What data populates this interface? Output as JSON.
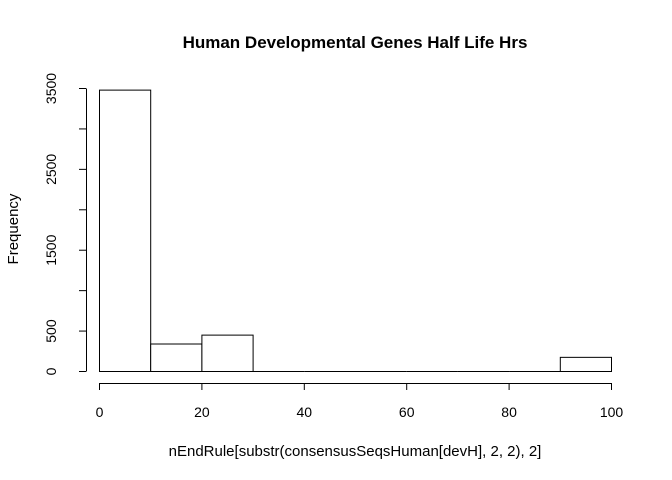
{
  "chart_data": {
    "type": "bar",
    "subtype": "histogram",
    "title": "Human Developmental Genes Half Life Hrs",
    "xlabel": "nEndRule[substr(consensusSeqsHuman[devH], 2, 2), 2]",
    "ylabel": "Frequency",
    "bins": [
      {
        "start": 0,
        "end": 10,
        "value": 3480
      },
      {
        "start": 10,
        "end": 20,
        "value": 340
      },
      {
        "start": 20,
        "end": 30,
        "value": 450
      },
      {
        "start": 30,
        "end": 40,
        "value": 0
      },
      {
        "start": 40,
        "end": 50,
        "value": 0
      },
      {
        "start": 50,
        "end": 60,
        "value": 0
      },
      {
        "start": 60,
        "end": 70,
        "value": 0
      },
      {
        "start": 70,
        "end": 80,
        "value": 0
      },
      {
        "start": 80,
        "end": 90,
        "value": 0
      },
      {
        "start": 90,
        "end": 100,
        "value": 175
      }
    ],
    "xlim": [
      0,
      100
    ],
    "ylim": [
      0,
      3500
    ],
    "x_ticks": [
      0,
      20,
      40,
      60,
      80,
      100
    ],
    "y_ticks": [
      0,
      500,
      1000,
      1500,
      2000,
      2500,
      3000,
      3500
    ],
    "y_tick_labels": [
      "0",
      "500",
      "",
      "1500",
      "",
      "2500",
      "",
      "3500"
    ],
    "grid": false,
    "bar_fill": "#ffffff",
    "bar_stroke": "#000000"
  }
}
